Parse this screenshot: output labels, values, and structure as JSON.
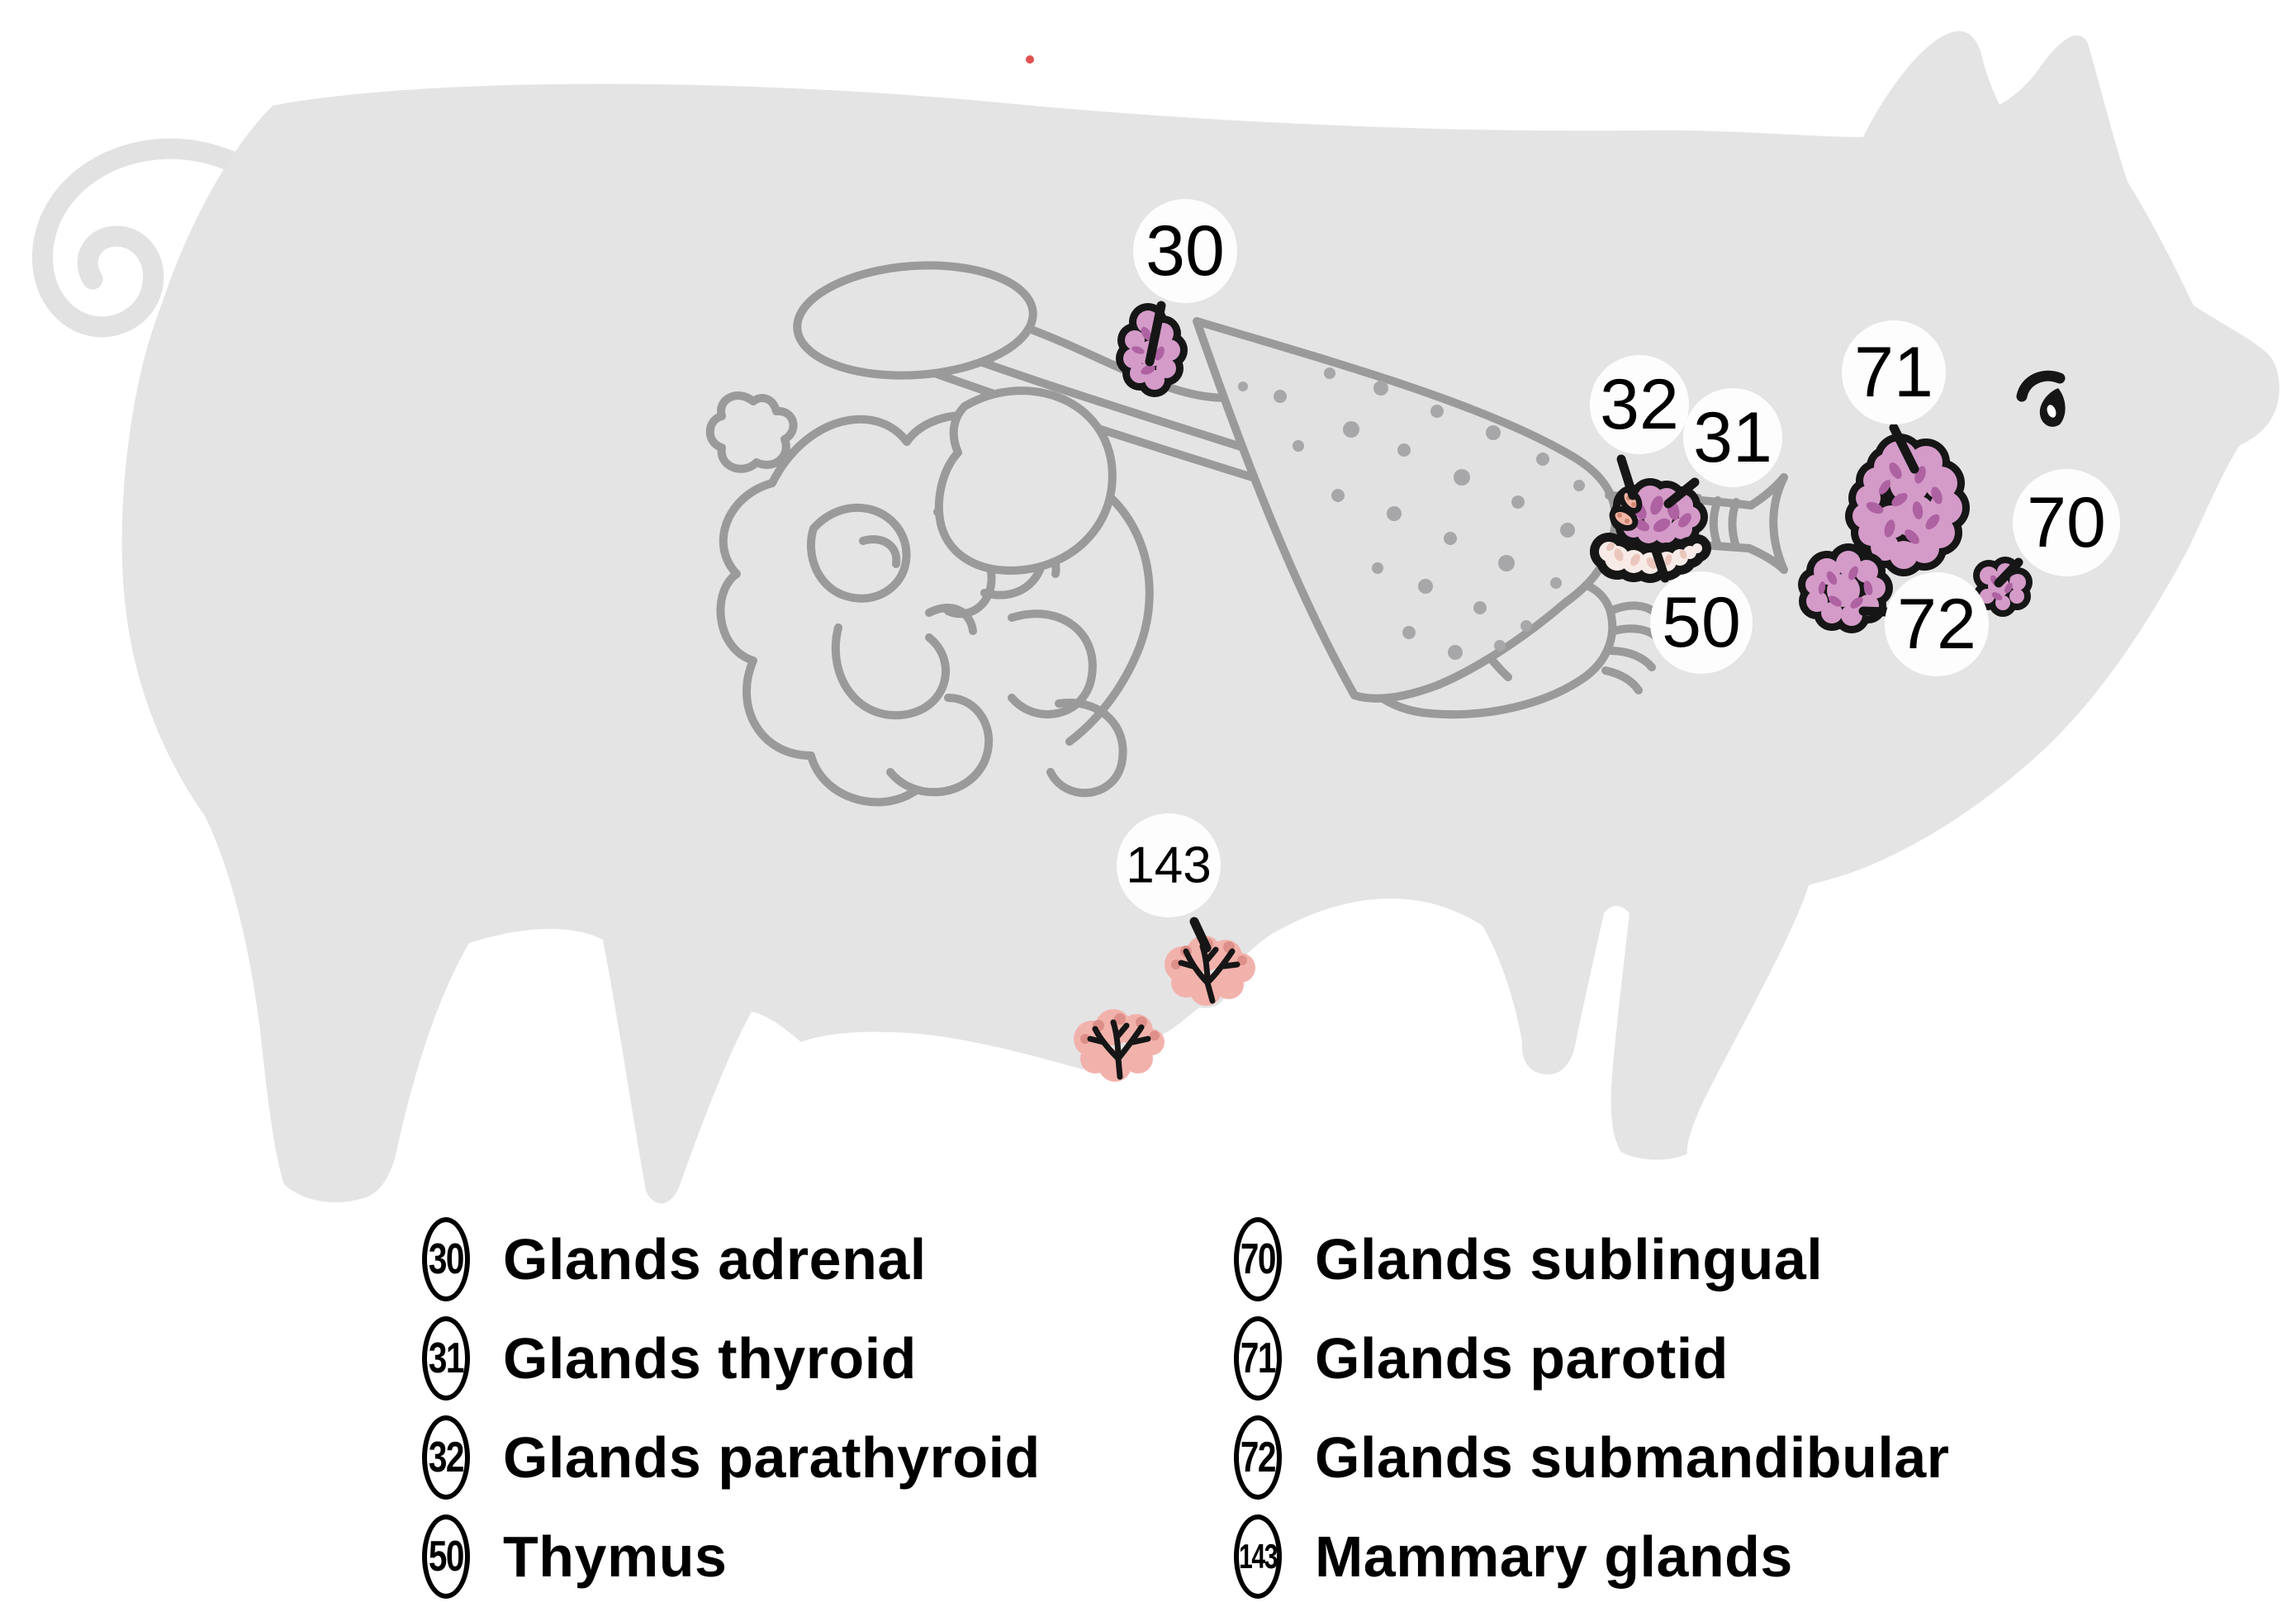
{
  "diagram": {
    "subject": "pig endocrine and exocrine glands anatomy",
    "callouts": {
      "c30": "30",
      "c31": "31",
      "c32": "32",
      "c50": "50",
      "c70": "70",
      "c71": "71",
      "c72": "72",
      "c143": "143"
    }
  },
  "legend": {
    "left": [
      {
        "number": "30",
        "label": "Glands adrenal"
      },
      {
        "number": "31",
        "label": "Glands thyroid"
      },
      {
        "number": "32",
        "label": "Glands parathyroid"
      },
      {
        "number": "50",
        "label": "Thymus"
      }
    ],
    "right": [
      {
        "number": "70",
        "label": "Glands sublingual"
      },
      {
        "number": "71",
        "label": "Glands parotid"
      },
      {
        "number": "72",
        "label": "Glands submandibular"
      },
      {
        "number": "143",
        "label": "Mammary glands"
      }
    ]
  },
  "colors": {
    "body": "#e4e4e5",
    "tail": "#e2e2e2",
    "organ_outline": "#9a9a9a",
    "lung_fill": "#e1e1e2",
    "lung_dot": "#a7a7a9",
    "gland_fill": "#d49bc8",
    "gland_spot": "#ae62a2",
    "parathyroid_fill": "#f2b6a6",
    "parathyroid_spot": "#d08873",
    "thymus_fill": "#f8ebe7",
    "thymus_spot": "#eac6bc",
    "mammary_fill": "#f2b2ac",
    "mammary_spot": "#dd8f89",
    "ink": "#161616",
    "bubble": "#fdfdfd",
    "red_dot": "#e0514f"
  }
}
